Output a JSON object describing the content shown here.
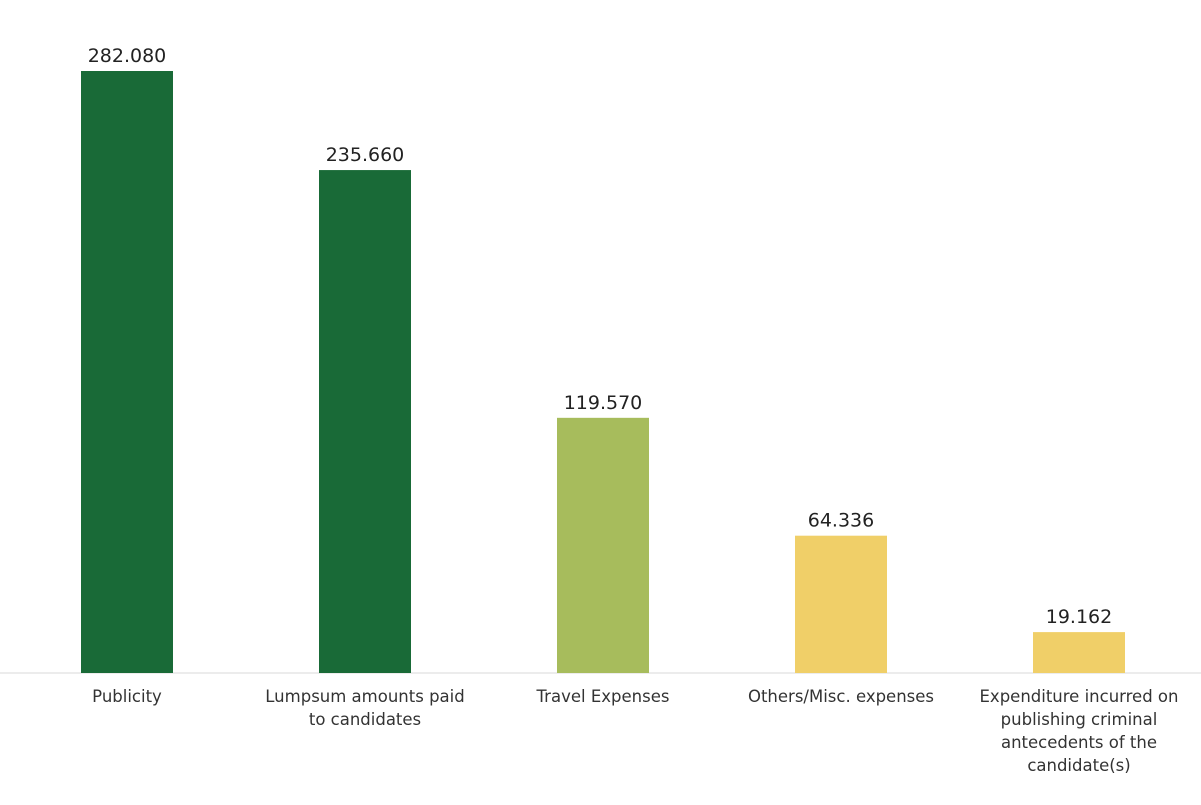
{
  "chart_data": {
    "type": "bar",
    "title": "",
    "xlabel": "",
    "ylabel": "",
    "ylim": [
      0,
      300
    ],
    "grid": false,
    "categories": [
      "Publicity",
      "Lumpsum amounts paid to candidates",
      "Travel Expenses",
      "Others/Misc. expenses",
      "Expenditure incurred on publishing criminal antecedents of the candidate(s)"
    ],
    "category_lines": [
      [
        "Publicity"
      ],
      [
        "Lumpsum amounts paid",
        "to candidates"
      ],
      [
        "Travel Expenses"
      ],
      [
        "Others/Misc. expenses"
      ],
      [
        "Expenditure incurred on",
        "publishing criminal",
        "antecedents of the",
        "candidate(s)"
      ]
    ],
    "values": [
      282.08,
      235.66,
      119.57,
      64.336,
      19.162
    ],
    "value_labels": [
      "282.080",
      "235.660",
      "119.570",
      "64.336",
      "19.162"
    ],
    "colors": [
      "#196a37",
      "#196a37",
      "#a7bc5c",
      "#f0cf68",
      "#f0cf68"
    ],
    "baseline_color": "#d9d9d9"
  }
}
